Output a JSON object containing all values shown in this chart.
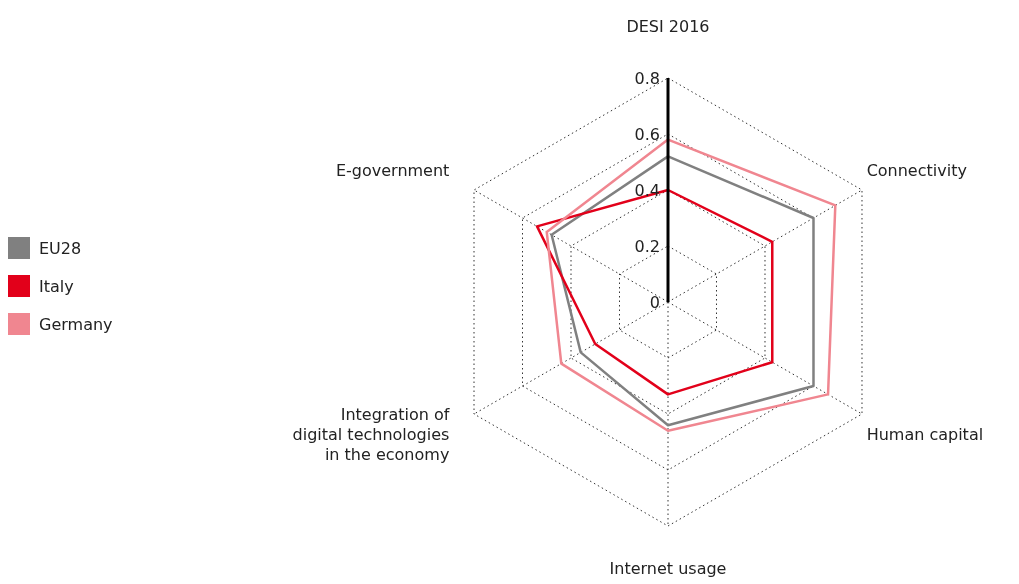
{
  "chart_data": {
    "type": "radar",
    "categories": [
      "DESI 2016",
      "Connectivity",
      "Human capital",
      "Internet usage",
      "Integration of digital technologies in the economy",
      "E-government"
    ],
    "series": [
      {
        "name": "EU28",
        "color": "#808080",
        "values": [
          0.52,
          0.6,
          0.6,
          0.44,
          0.36,
          0.48
        ]
      },
      {
        "name": "Italy",
        "color": "#e2001a",
        "values": [
          0.4,
          0.43,
          0.43,
          0.33,
          0.3,
          0.54
        ]
      },
      {
        "name": "Germany",
        "color": "#f08690",
        "values": [
          0.58,
          0.69,
          0.66,
          0.46,
          0.44,
          0.5
        ]
      }
    ],
    "ylim": [
      0,
      0.8
    ],
    "yticks": [
      0,
      0.2,
      0.4,
      0.6,
      0.8
    ],
    "grid": true,
    "legend": "left",
    "marker": "none",
    "line_style": "solid"
  }
}
